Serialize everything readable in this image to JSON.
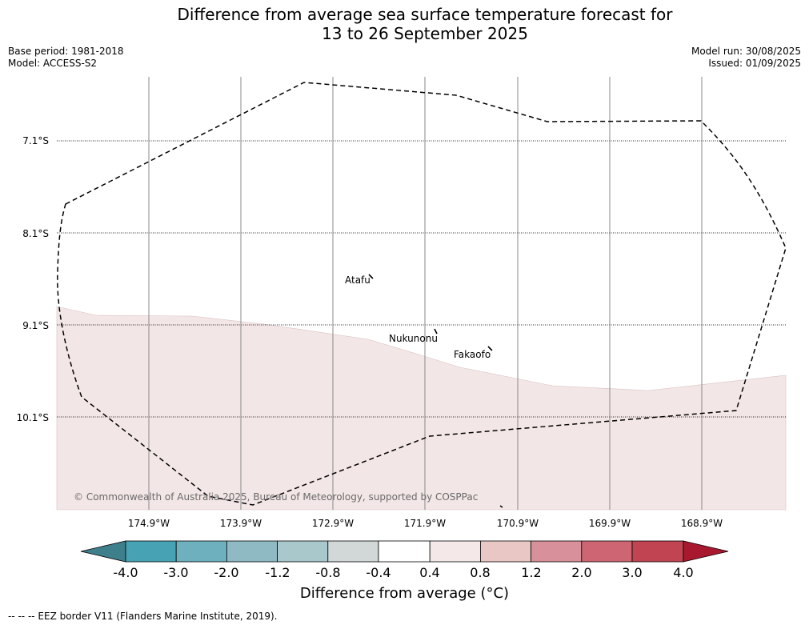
{
  "title_line1": "Difference from average sea surface temperature forecast for",
  "title_line2": "13 to 26 September 2025",
  "base_period": "Base period: 1981-2018",
  "model": "Model: ACCESS-S2",
  "model_run": "Model run: 30/08/2025",
  "issued": "Issued: 01/09/2025",
  "lat_labels": [
    "7.1°S",
    "8.1°S",
    "9.1°S",
    "10.1°S"
  ],
  "lon_labels": [
    "174.9°W",
    "173.9°W",
    "172.9°W",
    "171.9°W",
    "170.9°W",
    "169.9°W",
    "168.9°W"
  ],
  "places": [
    {
      "name": "Atafu"
    },
    {
      "name": "Nukunonu"
    },
    {
      "name": "Fakaofo"
    }
  ],
  "copyright": "© Commonwealth of Australia 2025, Bureau of Meteorology, supported by COSPPac",
  "colorbar": {
    "ticks": [
      "-4.0",
      "-3.0",
      "-2.0",
      "-1.2",
      "-0.8",
      "-0.4",
      "0.4",
      "0.8",
      "1.2",
      "2.0",
      "3.0",
      "4.0"
    ],
    "colors": [
      "#3e7f8c",
      "#47a3b4",
      "#6fb0bf",
      "#8fbac3",
      "#a9c8cc",
      "#d2d8d8",
      "#ffffff",
      "#f4e8e8",
      "#e8c7c5",
      "#d8909a",
      "#cd6672",
      "#c14452",
      "#a8192f"
    ],
    "title": "Difference from average (°C)"
  },
  "footer": "--  --  -- EEZ border V11 (Flanders Marine Institute, 2019).",
  "anomaly_band_color": "#f3e6e6"
}
